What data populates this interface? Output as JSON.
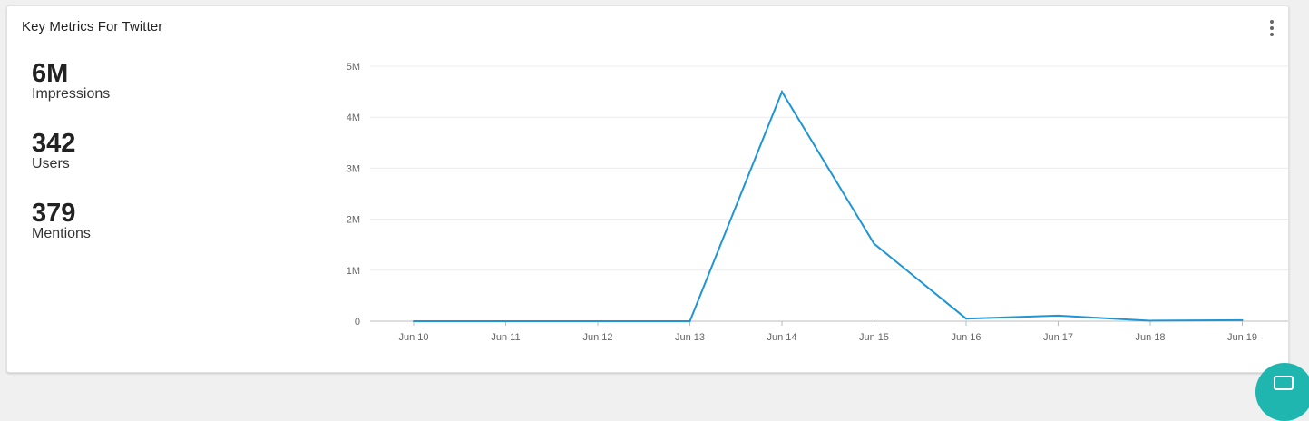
{
  "card": {
    "title": "Key Metrics For Twitter"
  },
  "menu": {
    "icon": "more-vertical-icon"
  },
  "metrics": [
    {
      "value": "6M",
      "label": "Impressions"
    },
    {
      "value": "342",
      "label": "Users"
    },
    {
      "value": "379",
      "label": "Mentions"
    }
  ],
  "colors": {
    "line": "#1f96d3",
    "gridline": "#ececec",
    "axis": "#bdbdbd",
    "chat_accent": "#1fb6b0"
  },
  "chat": {
    "icon": "chat-icon"
  },
  "chart_data": {
    "type": "line",
    "x": [
      "Jun 10",
      "Jun 11",
      "Jun 12",
      "Jun 13",
      "Jun 14",
      "Jun 15",
      "Jun 16",
      "Jun 17",
      "Jun 18",
      "Jun 19"
    ],
    "series": [
      {
        "values": [
          0,
          0,
          0,
          0,
          4500000,
          1520000,
          50000,
          110000,
          10000,
          20000
        ]
      }
    ],
    "y_ticks": [
      {
        "value": 0,
        "label": "0"
      },
      {
        "value": 1000000,
        "label": "1M"
      },
      {
        "value": 2000000,
        "label": "2M"
      },
      {
        "value": 3000000,
        "label": "3M"
      },
      {
        "value": 4000000,
        "label": "4M"
      },
      {
        "value": 5000000,
        "label": "5M"
      }
    ],
    "ylim": [
      0,
      5000000
    ],
    "grid": true,
    "title": "",
    "xlabel": "",
    "ylabel": ""
  }
}
